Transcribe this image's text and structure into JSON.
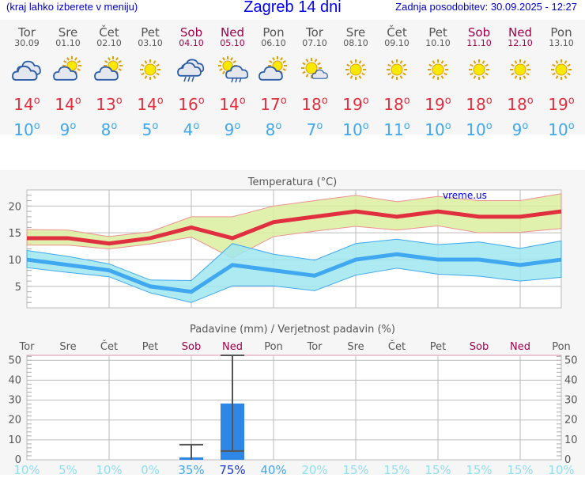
{
  "header": {
    "hint": "(kraj lahko izberete v meniju)",
    "title": "Zagreb 14 dni",
    "updated": "Zadnja posodobitev: 30.09.2025 - 12:27"
  },
  "days": [
    {
      "name": "Tor",
      "date": "30.09",
      "icon": "cloudy-icon",
      "max": "14",
      "min": "10",
      "weekend": false
    },
    {
      "name": "Sre",
      "date": "01.10",
      "icon": "partly-cloudy-icon",
      "max": "14",
      "min": "9",
      "weekend": false
    },
    {
      "name": "Čet",
      "date": "02.10",
      "icon": "partly-cloudy-icon",
      "max": "13",
      "min": "8",
      "weekend": false
    },
    {
      "name": "Pet",
      "date": "03.10",
      "icon": "sunny-icon",
      "max": "14",
      "min": "5",
      "weekend": false
    },
    {
      "name": "Sob",
      "date": "04.10",
      "icon": "rain-cloud-icon",
      "max": "16",
      "min": "4",
      "weekend": true
    },
    {
      "name": "Ned",
      "date": "05.10",
      "icon": "sun-rain-icon",
      "max": "14",
      "min": "9",
      "weekend": true
    },
    {
      "name": "Pon",
      "date": "06.10",
      "icon": "partly-cloudy-icon",
      "max": "17",
      "min": "8",
      "weekend": false
    },
    {
      "name": "Tor",
      "date": "07.10",
      "icon": "sun-small-cloud-icon",
      "max": "18",
      "min": "7",
      "weekend": false
    },
    {
      "name": "Sre",
      "date": "08.10",
      "icon": "sunny-icon",
      "max": "19",
      "min": "10",
      "weekend": false
    },
    {
      "name": "Čet",
      "date": "09.10",
      "icon": "sunny-icon",
      "max": "18",
      "min": "11",
      "weekend": false
    },
    {
      "name": "Pet",
      "date": "10.10",
      "icon": "sunny-icon",
      "max": "19",
      "min": "10",
      "weekend": false
    },
    {
      "name": "Sob",
      "date": "11.10",
      "icon": "sunny-icon",
      "max": "18",
      "min": "10",
      "weekend": true
    },
    {
      "name": "Ned",
      "date": "12.10",
      "icon": "sunny-icon",
      "max": "18",
      "min": "9",
      "weekend": true
    },
    {
      "name": "Pon",
      "date": "13.10",
      "icon": "sunny-icon",
      "max": "19",
      "min": "10",
      "weekend": false
    }
  ],
  "degree": "o",
  "colors": {
    "max": "#e03040",
    "min": "#40a8f0",
    "weekend": "#a0004a",
    "max_band": "#dbef9f",
    "min_band": "#a0e6f0",
    "precip": "#2e86e6"
  },
  "chart_data": [
    {
      "type": "line",
      "title": "Temperatura (°C)",
      "watermark": "vreme.us",
      "ylim": [
        1,
        23
      ],
      "yticks": [
        5,
        10,
        15,
        20
      ],
      "grid": true,
      "series": [
        {
          "name": "max",
          "values": [
            14,
            14,
            13,
            14,
            16,
            14,
            17,
            18,
            19,
            18,
            19,
            18,
            18,
            19
          ],
          "band_high": [
            15.6,
            15.5,
            14.3,
            15.2,
            18,
            18,
            20,
            21,
            22,
            20.8,
            21.8,
            21,
            21,
            22.3
          ],
          "band_low": [
            12.7,
            12.7,
            12,
            12.9,
            14.2,
            10.3,
            14.3,
            15.3,
            16.2,
            15.5,
            16.3,
            15,
            15.1,
            15.8
          ]
        },
        {
          "name": "min",
          "values": [
            10,
            9,
            8,
            5,
            4,
            9,
            8,
            7,
            10,
            11,
            10,
            10,
            9,
            10
          ],
          "band_high": [
            11.7,
            10.6,
            9.2,
            6.2,
            6.1,
            13,
            11,
            9.9,
            13,
            13.8,
            12.8,
            13.3,
            12.1,
            13.5
          ],
          "band_low": [
            8.5,
            7.6,
            6.8,
            3.8,
            2.0,
            5.1,
            5.1,
            4.2,
            7.1,
            8.4,
            7.3,
            6.9,
            6.0,
            6.7
          ]
        }
      ]
    },
    {
      "type": "bar",
      "title": "Padavine (mm) / Verjetnost padavin (%)",
      "ylim": [
        0,
        52.5
      ],
      "yticks": [
        "0",
        "10",
        "20",
        "30",
        "40",
        "50"
      ],
      "grid": true,
      "categories": [
        "Tor",
        "Sre",
        "Čet",
        "Pet",
        "Sob",
        "Ned",
        "Pon",
        "Tor",
        "Sre",
        "Čet",
        "Pet",
        "Sob",
        "Ned",
        "Pon"
      ],
      "values": [
        0,
        0,
        0,
        0,
        1.2,
        28.3,
        0,
        0,
        0,
        0,
        0,
        0,
        0,
        0
      ],
      "err_low": [
        null,
        null,
        null,
        null,
        0,
        4.4,
        null,
        null,
        null,
        null,
        null,
        null,
        null,
        null
      ],
      "err_high": [
        null,
        null,
        null,
        null,
        7.6,
        52.5,
        null,
        null,
        null,
        null,
        null,
        null,
        null,
        null
      ],
      "probability": [
        "10%",
        "5%",
        "10%",
        "0%",
        "35%",
        "75%",
        "40%",
        "20%",
        "15%",
        "15%",
        "15%",
        "15%",
        "15%",
        "10%"
      ],
      "probability_values": [
        10,
        5,
        10,
        0,
        35,
        75,
        40,
        20,
        15,
        15,
        15,
        15,
        15,
        10
      ]
    }
  ]
}
